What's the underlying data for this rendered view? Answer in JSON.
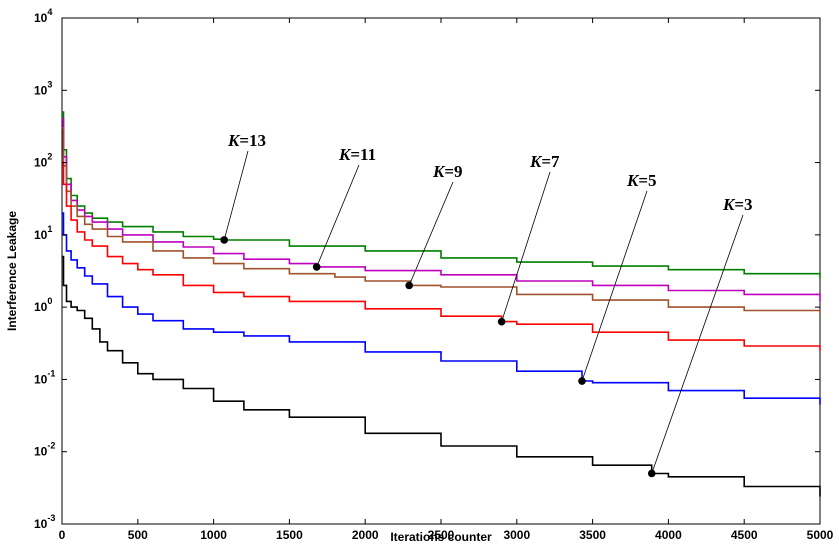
{
  "chart_data": {
    "type": "line",
    "title": "",
    "xlabel": "Iterations counter",
    "ylabel": "Interference Leakage",
    "xlim": [
      0,
      5000
    ],
    "ylim": [
      0.001,
      10000
    ],
    "yscale": "log",
    "x_ticks": [
      "0",
      "500",
      "1000",
      "1500",
      "2000",
      "2500",
      "3000",
      "3500",
      "4000",
      "4500",
      "5000"
    ],
    "y_ticks": [
      {
        "base": "10",
        "exp": "-3",
        "value": 0.001
      },
      {
        "base": "10",
        "exp": "-2",
        "value": 0.01
      },
      {
        "base": "10",
        "exp": "-1",
        "value": 0.1
      },
      {
        "base": "10",
        "exp": "0",
        "value": 1
      },
      {
        "base": "10",
        "exp": "1",
        "value": 10
      },
      {
        "base": "10",
        "exp": "2",
        "value": 100
      },
      {
        "base": "10",
        "exp": "3",
        "value": 1000
      },
      {
        "base": "10",
        "exp": "4",
        "value": 10000
      }
    ],
    "grid": false,
    "series": [
      {
        "annotation": {
          "italic": "K",
          "rest": "=13"
        },
        "color": "#008000",
        "x": [
          0,
          10,
          30,
          60,
          100,
          150,
          200,
          300,
          400,
          600,
          800,
          1000,
          1070,
          1500,
          2000,
          2500,
          3000,
          3500,
          4000,
          4500,
          5000
        ],
        "y": [
          500,
          150,
          60,
          35,
          25,
          20,
          17,
          15,
          13,
          11,
          9.5,
          8.7,
          8.5,
          7,
          6,
          4.8,
          4.2,
          3.7,
          3.3,
          2.9,
          2.5
        ],
        "marker": {
          "x": 1070,
          "y": 8.5
        }
      },
      {
        "annotation": {
          "italic": "K",
          "rest": "=11"
        },
        "color": "#BF00BF",
        "x": [
          0,
          10,
          30,
          60,
          100,
          150,
          200,
          300,
          400,
          600,
          800,
          1000,
          1200,
          1500,
          1680,
          2000,
          2500,
          3000,
          3500,
          4000,
          4500,
          5000
        ],
        "y": [
          400,
          120,
          50,
          30,
          22,
          18,
          15,
          12,
          10,
          8,
          6.8,
          5.5,
          4.6,
          4,
          3.6,
          3.2,
          2.8,
          2.3,
          2,
          1.7,
          1.5,
          1.2
        ],
        "marker": {
          "x": 1680,
          "y": 3.6
        }
      },
      {
        "annotation": {
          "italic": "K",
          "rest": "=9"
        },
        "color": "#A0522D",
        "x": [
          0,
          10,
          30,
          60,
          100,
          150,
          200,
          300,
          400,
          600,
          800,
          1000,
          1200,
          1500,
          1800,
          2000,
          2300,
          2500,
          3000,
          3500,
          4000,
          4500,
          5000
        ],
        "y": [
          300,
          90,
          40,
          25,
          18,
          14,
          12,
          9.5,
          8,
          6,
          4.8,
          4,
          3.4,
          2.9,
          2.6,
          2.3,
          2,
          1.9,
          1.5,
          1.25,
          1,
          0.9,
          0.8
        ],
        "marker": {
          "x": 2290,
          "y": 2.0
        }
      },
      {
        "annotation": {
          "italic": "K",
          "rest": "=7"
        },
        "color": "#FF0000",
        "x": [
          0,
          10,
          30,
          60,
          100,
          150,
          200,
          300,
          400,
          500,
          600,
          800,
          1000,
          1200,
          1500,
          2000,
          2500,
          2900,
          3000,
          3500,
          4000,
          4500,
          5000
        ],
        "y": [
          100,
          50,
          25,
          16,
          11,
          8.5,
          7,
          5,
          4,
          3.3,
          2.8,
          2,
          1.6,
          1.4,
          1.2,
          0.95,
          0.75,
          0.63,
          0.58,
          0.45,
          0.35,
          0.29,
          0.25
        ],
        "marker": {
          "x": 2900,
          "y": 0.63
        }
      },
      {
        "annotation": {
          "italic": "K",
          "rest": "=5"
        },
        "color": "#0000FF",
        "x": [
          0,
          10,
          30,
          60,
          100,
          150,
          200,
          300,
          400,
          500,
          600,
          800,
          1000,
          1200,
          1500,
          2000,
          2500,
          3000,
          3430,
          3500,
          4000,
          4500,
          5000
        ],
        "y": [
          20,
          10,
          6,
          4.5,
          3.5,
          2.7,
          2.1,
          1.4,
          1,
          0.8,
          0.65,
          0.5,
          0.45,
          0.4,
          0.33,
          0.24,
          0.18,
          0.13,
          0.095,
          0.09,
          0.07,
          0.055,
          0.045
        ],
        "marker": {
          "x": 3430,
          "y": 0.095
        }
      },
      {
        "annotation": {
          "italic": "K",
          "rest": "=3"
        },
        "color": "#000000",
        "x": [
          0,
          10,
          30,
          60,
          100,
          150,
          200,
          250,
          300,
          400,
          500,
          600,
          800,
          1000,
          1200,
          1500,
          2000,
          2500,
          3000,
          3500,
          3890,
          4000,
          4500,
          5000
        ],
        "y": [
          5,
          2,
          1.2,
          1,
          0.9,
          0.7,
          0.5,
          0.33,
          0.25,
          0.17,
          0.12,
          0.1,
          0.075,
          0.05,
          0.038,
          0.03,
          0.018,
          0.012,
          0.0085,
          0.0065,
          0.005,
          0.0045,
          0.0033,
          0.0024
        ],
        "marker": {
          "x": 3890,
          "y": 0.005
        }
      }
    ]
  }
}
